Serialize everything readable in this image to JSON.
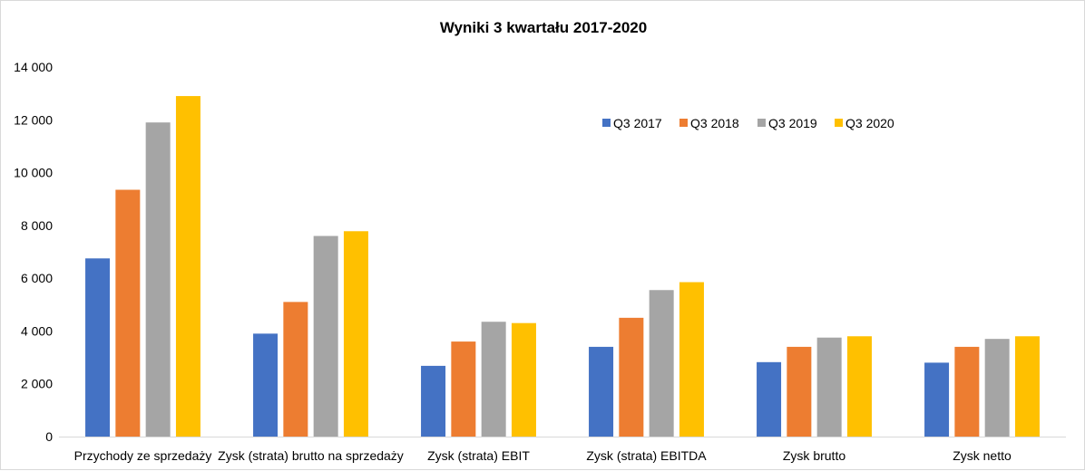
{
  "chart_data": {
    "type": "bar",
    "title": "Wyniki 3 kwartału 2017-2020",
    "xlabel": "",
    "ylabel": "",
    "ylim": [
      0,
      14000
    ],
    "yticks": [
      0,
      2000,
      4000,
      6000,
      8000,
      10000,
      12000,
      14000
    ],
    "ytick_labels": [
      "0",
      "2 000",
      "4 000",
      "6 000",
      "8 000",
      "10 000",
      "12 000",
      "14 000"
    ],
    "grid": false,
    "legend_position": "top-right",
    "categories": [
      "Przychody ze sprzedaży",
      "Zysk (strata) brutto na sprzedaży",
      "Zysk (strata) EBIT",
      "Zysk (strata) EBITDA",
      "Zysk brutto",
      "Zysk netto"
    ],
    "series": [
      {
        "name": "Q3 2017",
        "color": "#4472c4",
        "values": [
          6750,
          3900,
          2680,
          3400,
          2820,
          2800
        ]
      },
      {
        "name": "Q3 2018",
        "color": "#ed7d31",
        "values": [
          9350,
          5100,
          3600,
          4500,
          3400,
          3400
        ]
      },
      {
        "name": "Q3 2019",
        "color": "#a5a5a5",
        "values": [
          11900,
          7600,
          4350,
          5550,
          3750,
          3700
        ]
      },
      {
        "name": "Q3 2020",
        "color": "#ffc000",
        "values": [
          12900,
          7780,
          4300,
          5850,
          3800,
          3800
        ]
      }
    ]
  }
}
